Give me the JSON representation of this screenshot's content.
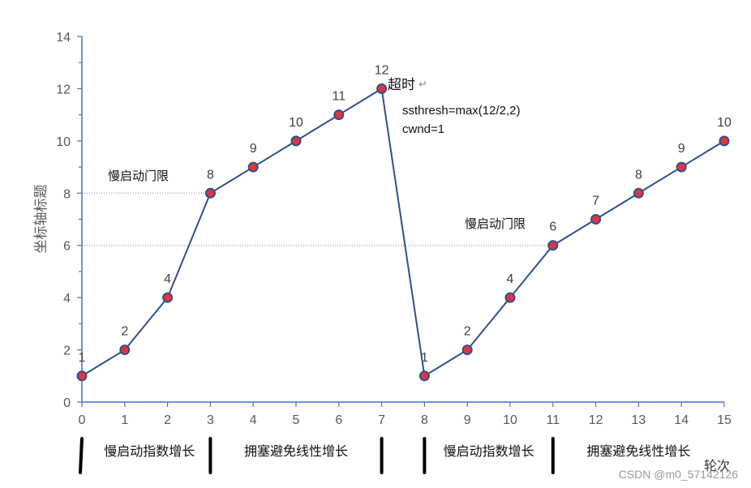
{
  "chart_data": {
    "type": "line",
    "x": [
      0,
      1,
      2,
      3,
      4,
      5,
      6,
      7,
      8,
      9,
      10,
      11,
      12,
      13,
      14,
      15
    ],
    "series": [
      {
        "values": [
          1,
          2,
          4,
          8,
          9,
          10,
          11,
          12,
          1,
          2,
          4,
          6,
          7,
          8,
          9,
          10
        ]
      }
    ],
    "data_labels": [
      "1",
      "2",
      "4",
      "8",
      "9",
      "10",
      "11",
      "12",
      "1",
      "2",
      "4",
      "6",
      "7",
      "8",
      "9",
      "10"
    ],
    "xlim": [
      0,
      15
    ],
    "ylim": [
      0,
      14
    ],
    "y_ticks": [
      0,
      2,
      4,
      6,
      8,
      10,
      12,
      14
    ],
    "x_ticks": [
      0,
      1,
      2,
      3,
      4,
      5,
      6,
      7,
      8,
      9,
      10,
      11,
      12,
      13,
      14,
      15
    ],
    "ylabel": "坐标轴标题",
    "xlabel": "轮次",
    "thresholds": [
      {
        "label": "慢启动门限",
        "y": 8,
        "x_from": 0,
        "x_to": 3.2
      },
      {
        "label": "慢启动门限",
        "y": 6,
        "x_from": 0,
        "x_to": 11
      }
    ],
    "annotations": {
      "timeout": "超时",
      "timeout_mark": "↵",
      "ssthresh": "ssthresh=max(12/2,2)",
      "cwnd": "cwnd=1"
    },
    "phases": [
      {
        "label": "慢启动指数增长",
        "x_from": 0,
        "x_to": 3
      },
      {
        "label": "拥塞避免线性增长",
        "x_from": 3,
        "x_to": 7
      },
      {
        "label": "慢启动指数增长",
        "x_from": 8,
        "x_to": 11
      },
      {
        "label": "拥塞避免线性增长",
        "x_from": 11,
        "x_to": 15
      }
    ],
    "grid": false,
    "colors": {
      "line": "#2f4f8f",
      "marker_fill": "#e2343b",
      "marker_stroke": "#2f4f8f",
      "axis": "#4472c4",
      "threshold": "#bfbfbf"
    }
  },
  "watermark": "CSDN @m0_57142126"
}
